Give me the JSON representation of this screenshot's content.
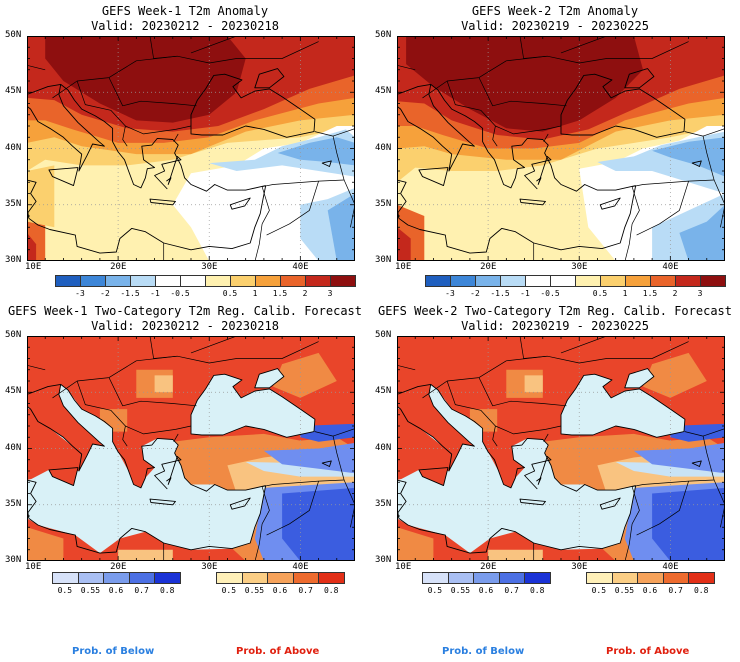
{
  "panels": [
    {
      "id": "p1",
      "title": "GEFS Week-1 T2m Anomaly",
      "valid": "Valid: 20230212 - 20230218",
      "kind": "anom"
    },
    {
      "id": "p2",
      "title": "GEFS Week-2 T2m Anomaly",
      "valid": "Valid: 20230219 - 20230225",
      "kind": "anom"
    },
    {
      "id": "p3",
      "title": "GEFS Week-1 Two-Category T2m Reg. Calib. Forecast",
      "valid": "Valid: 20230212 - 20230218",
      "kind": "prob"
    },
    {
      "id": "p4",
      "title": "GEFS Week-2 Two-Category T2m Reg. Calib. Forecast",
      "valid": "Valid: 20230219 - 20230225",
      "kind": "prob"
    }
  ],
  "axes": {
    "lat_labels": [
      "50N",
      "45N",
      "40N",
      "35N",
      "30N"
    ],
    "lon_labels": [
      "10E",
      "20E",
      "30E",
      "40E"
    ]
  },
  "anomaly_colorbar": {
    "colors": [
      "#1f5fbf",
      "#3d86d8",
      "#79b3ea",
      "#b9dcf6",
      "#ffffff",
      "#ffffff",
      "#fff1b0",
      "#fbd06e",
      "#f6a13b",
      "#e9642a",
      "#c4281c",
      "#8e0f0f"
    ],
    "labels": [
      "-3",
      "-2",
      "-1.5",
      "-1",
      "-0.5",
      "0.5",
      "1",
      "1.5",
      "2",
      "3"
    ]
  },
  "prob_below_colorbar": {
    "colors": [
      "#d7e2f9",
      "#a9bff3",
      "#7a9cec",
      "#4c70e4",
      "#1a32d6"
    ],
    "labels": [
      "0.5",
      "0.55",
      "0.6",
      "0.7",
      "0.8"
    ],
    "caption": "Prob. of Below",
    "caption_color": "#2a7fe0"
  },
  "prob_above_colorbar": {
    "colors": [
      "#fff0b8",
      "#fbce85",
      "#f6a25a",
      "#ee6b2e",
      "#e22f17"
    ],
    "labels": [
      "0.5",
      "0.55",
      "0.6",
      "0.7",
      "0.8"
    ],
    "caption": "Prob. of Above",
    "caption_color": "#e0200f"
  },
  "map_colors": {
    "anom_dark": "#8e0f0f",
    "anom_red": "#c4281c",
    "anom_orange": "#e9642a",
    "anom_lightorange": "#f6a13b",
    "anom_yellow": "#fbd06e",
    "anom_paleyellow": "#fff1b0",
    "anom_white": "#ffffff",
    "anom_lightblue": "#b9dcf6",
    "anom_blue": "#79b3ea",
    "anom_darkblue": "#3d86d8",
    "prob_red": "#e9452a",
    "prob_orange": "#f08a44",
    "prob_paleorange": "#f9c380",
    "prob_sea": "#d9f1f7",
    "prob_blue": "#3b5de0",
    "prob_midblue": "#6f8ef0",
    "prob_palecyan": "#c9e3f6"
  }
}
